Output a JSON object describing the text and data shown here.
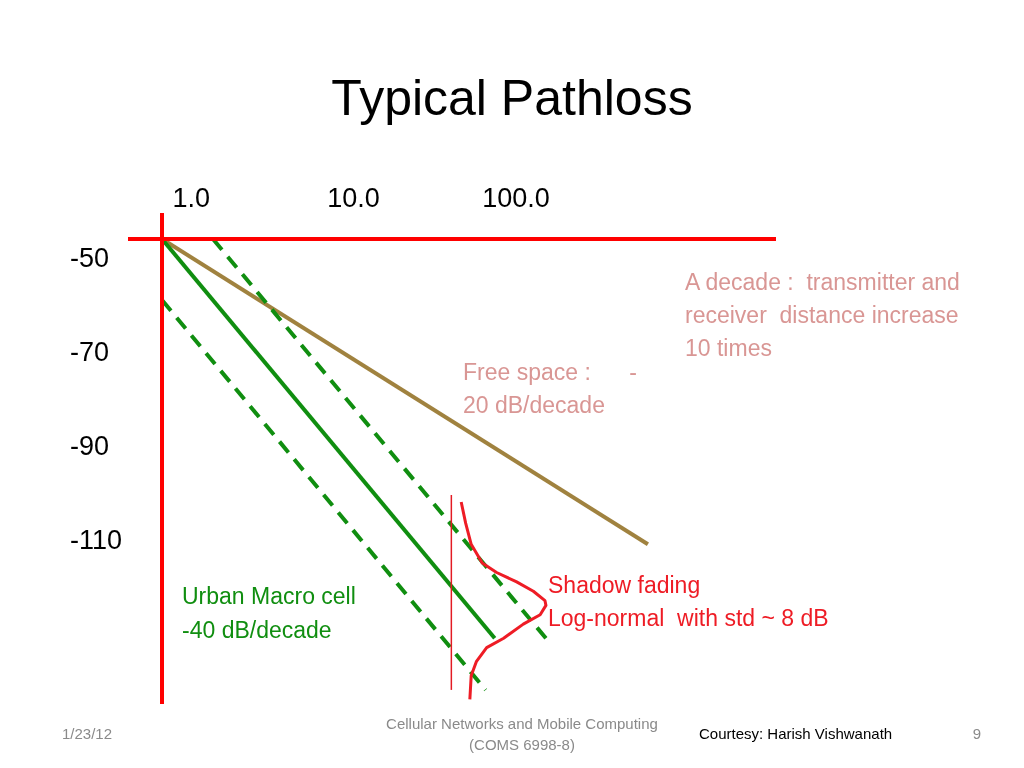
{
  "chart_data": {
    "type": "line",
    "title": "Typical Pathloss",
    "log": "x",
    "xlim": [
      0.66,
      4000
    ],
    "ylim": [
      -145,
      -46
    ],
    "xticks": [
      {
        "value": 1,
        "label": "1.0"
      },
      {
        "value": 10,
        "label": "10.0"
      },
      {
        "value": 100,
        "label": "100.0"
      }
    ],
    "yticks": [
      -50,
      -70,
      -90,
      -110
    ],
    "series": [
      {
        "color": "#a0823f",
        "x": [
          0.66,
          650
        ],
        "values": [
          -46,
          -111
        ]
      },
      {
        "color": "#108e10",
        "x": [
          0.66,
          74
        ],
        "values": [
          -46,
          -131
        ]
      },
      {
        "color": "#108e10",
        "line_style": "dashed",
        "x": [
          1.36,
          153
        ],
        "values": [
          -46,
          -131
        ]
      },
      {
        "color": "#108e10",
        "line_style": "dashed",
        "x": [
          0.66,
          65
        ],
        "values": [
          -59,
          -142
        ]
      },
      {
        "color": "#e31b23",
        "x": [
          40,
          40
        ],
        "values": [
          -100.5,
          -142
        ]
      },
      {
        "color": "#ee1c25",
        "x": [
          46,
          49,
          53,
          62,
          76,
          101,
          128,
          151,
          153,
          141,
          111,
          84,
          66,
          57,
          53,
          52
        ],
        "values": [
          -102,
          -106.5,
          -111,
          -115,
          -117,
          -119,
          -121,
          -123,
          -124,
          -126,
          -128,
          -131,
          -133,
          -136,
          -139,
          -144
        ]
      }
    ],
    "annotations": [
      "A decade :  transmitter and\nreceiver  distance increase\n10 times",
      "Free space :      -\n20 dB/decade",
      "Urban Macro cell\n-40 dB/decade",
      "Shadow fading\nLog-normal  with std ~ 8 dB",
      "1/23/12",
      "Cellular Networks and Mobile Computing\n(COMS 6998-8)",
      "Courtesy: Harish Vishwanath",
      "9"
    ]
  }
}
